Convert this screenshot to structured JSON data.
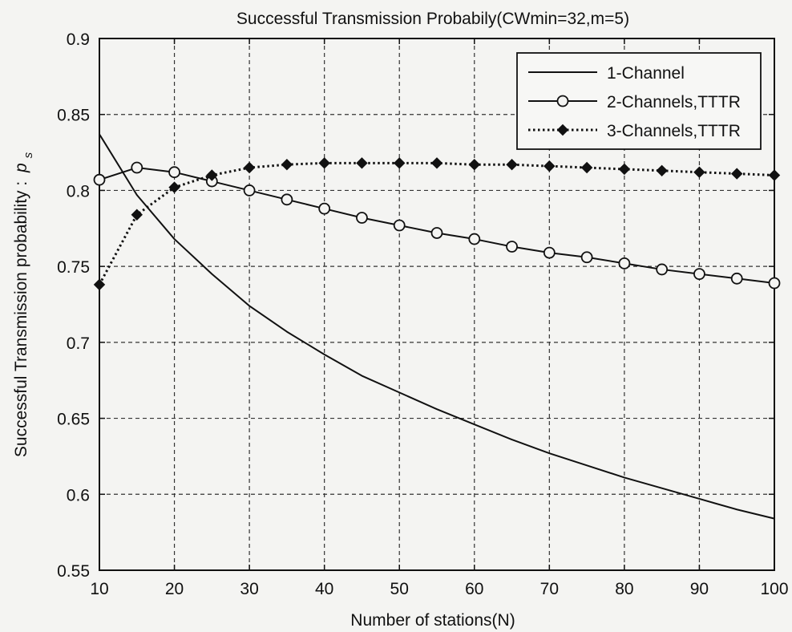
{
  "chart_data": {
    "type": "line",
    "title": "Successful Transmission Probabily(CWmin=32,m=5)",
    "xlabel": "Number of stations(N)",
    "ylabel": "Successful Transmission probability :",
    "ylabel_symbol": "p",
    "ylabel_subscript": "s",
    "xlim": [
      10,
      100
    ],
    "ylim": [
      0.55,
      0.9
    ],
    "x_ticks": [
      10,
      20,
      30,
      40,
      50,
      60,
      70,
      80,
      90,
      100
    ],
    "x_tick_labels": [
      "10",
      "20",
      "30",
      "40",
      "50",
      "60",
      "70",
      "80",
      "90",
      "100"
    ],
    "y_ticks": [
      0.55,
      0.6,
      0.65,
      0.7,
      0.75,
      0.8,
      0.85,
      0.9
    ],
    "y_tick_labels": [
      "0.55",
      "0.6",
      "0.65",
      "0.7",
      "0.75",
      "0.8",
      "0.85",
      "0.9"
    ],
    "grid": true,
    "legend_position": "top-right",
    "series": [
      {
        "name": "1-Channel",
        "style": "solid",
        "marker": "none",
        "color": "#111111",
        "x": [
          10,
          15,
          20,
          25,
          30,
          35,
          40,
          45,
          50,
          55,
          60,
          65,
          70,
          75,
          80,
          85,
          90,
          95,
          100
        ],
        "y": [
          0.837,
          0.797,
          0.768,
          0.745,
          0.724,
          0.707,
          0.692,
          0.678,
          0.667,
          0.656,
          0.646,
          0.636,
          0.627,
          0.619,
          0.611,
          0.604,
          0.597,
          0.59,
          0.584
        ]
      },
      {
        "name": "2-Channels,TTTR",
        "style": "solid",
        "marker": "circle",
        "color": "#111111",
        "x": [
          10,
          15,
          20,
          25,
          30,
          35,
          40,
          45,
          50,
          55,
          60,
          65,
          70,
          75,
          80,
          85,
          90,
          95,
          100
        ],
        "y": [
          0.807,
          0.815,
          0.812,
          0.806,
          0.8,
          0.794,
          0.788,
          0.782,
          0.777,
          0.772,
          0.768,
          0.763,
          0.759,
          0.756,
          0.752,
          0.748,
          0.745,
          0.742,
          0.739
        ]
      },
      {
        "name": "3-Channels,TTTR",
        "style": "dotted",
        "marker": "diamond",
        "color": "#111111",
        "x": [
          10,
          15,
          20,
          25,
          30,
          35,
          40,
          45,
          50,
          55,
          60,
          65,
          70,
          75,
          80,
          85,
          90,
          95,
          100
        ],
        "y": [
          0.738,
          0.784,
          0.802,
          0.81,
          0.815,
          0.817,
          0.818,
          0.818,
          0.818,
          0.818,
          0.817,
          0.817,
          0.816,
          0.815,
          0.814,
          0.813,
          0.812,
          0.811,
          0.81
        ]
      }
    ]
  }
}
